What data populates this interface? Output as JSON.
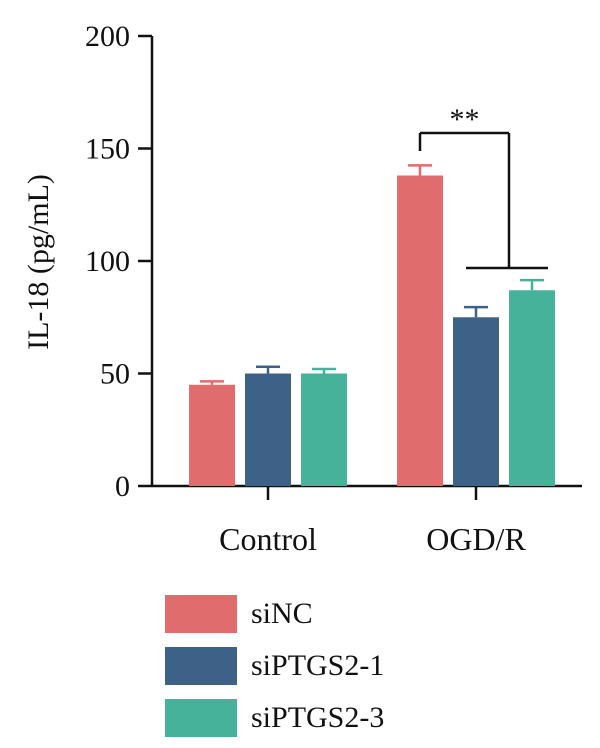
{
  "chart_data": {
    "type": "bar",
    "title": "",
    "xlabel": "",
    "ylabel": "IL-18 (pg/mL)",
    "ylim": [
      0,
      200
    ],
    "yticks": [
      0,
      50,
      100,
      150,
      200
    ],
    "grid": false,
    "legend_position": "bottom",
    "categories": [
      "Control",
      "OGD/R"
    ],
    "series": [
      {
        "name": "siNC",
        "color": "#E06C6E",
        "values": [
          45,
          138
        ],
        "errors": [
          1.5,
          4.5
        ]
      },
      {
        "name": "siPTGS2-1",
        "color": "#3E6187",
        "values": [
          50,
          75
        ],
        "errors": [
          3,
          4.5
        ]
      },
      {
        "name": "siPTGS2-3",
        "color": "#47B29A",
        "values": [
          50,
          87
        ],
        "errors": [
          2,
          4.5
        ]
      }
    ],
    "annotations": [
      {
        "text": "**",
        "between": [
          "OGD/R siNC",
          "OGD/R siPTGS2-1 + siPTGS2-3"
        ]
      }
    ]
  }
}
